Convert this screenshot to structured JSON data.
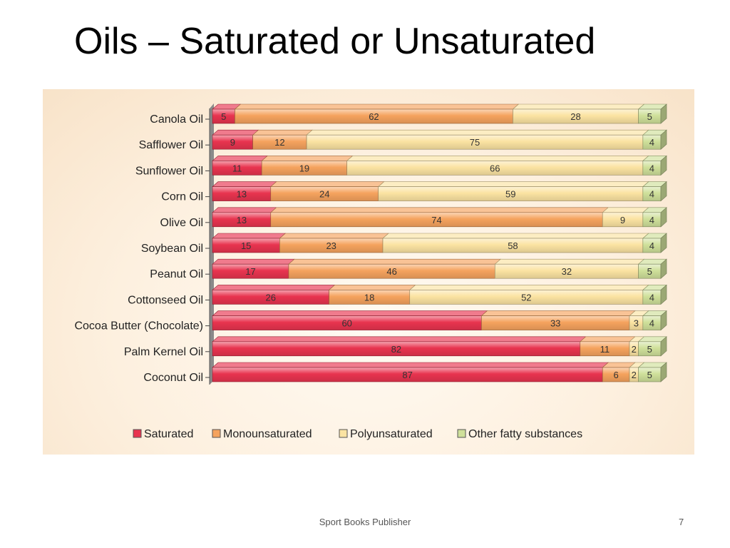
{
  "slide": {
    "title": "Oils – Saturated or Unsaturated",
    "footer": "Sport Books Publisher",
    "page_number": "7"
  },
  "chart_data": {
    "type": "bar",
    "stacked": true,
    "orientation": "horizontal",
    "style": "3d",
    "categories": [
      "Canola Oil",
      "Safflower Oil",
      "Sunflower Oil",
      "Corn Oil",
      "Olive Oil",
      "Soybean Oil",
      "Peanut Oil",
      "Cottonseed Oil",
      "Cocoa Butter (Chocolate)",
      "Palm Kernel Oil",
      "Coconut Oil"
    ],
    "series": [
      {
        "name": "Saturated",
        "color": "#e8344f",
        "values": [
          5,
          9,
          11,
          13,
          13,
          15,
          17,
          26,
          60,
          82,
          87
        ]
      },
      {
        "name": "Monounsaturated",
        "color": "#f5a35e",
        "values": [
          62,
          12,
          19,
          24,
          74,
          23,
          46,
          18,
          33,
          11,
          6
        ]
      },
      {
        "name": "Polyunsaturated",
        "color": "#fbe3a2",
        "values": [
          28,
          75,
          66,
          59,
          9,
          58,
          32,
          52,
          3,
          2,
          2
        ]
      },
      {
        "name": "Other fatty substances",
        "color": "#cfe09a",
        "values": [
          5,
          4,
          4,
          4,
          4,
          4,
          5,
          4,
          4,
          5,
          5
        ]
      }
    ],
    "legend_position": "bottom",
    "xlim": [
      0,
      100
    ],
    "grid": false
  }
}
